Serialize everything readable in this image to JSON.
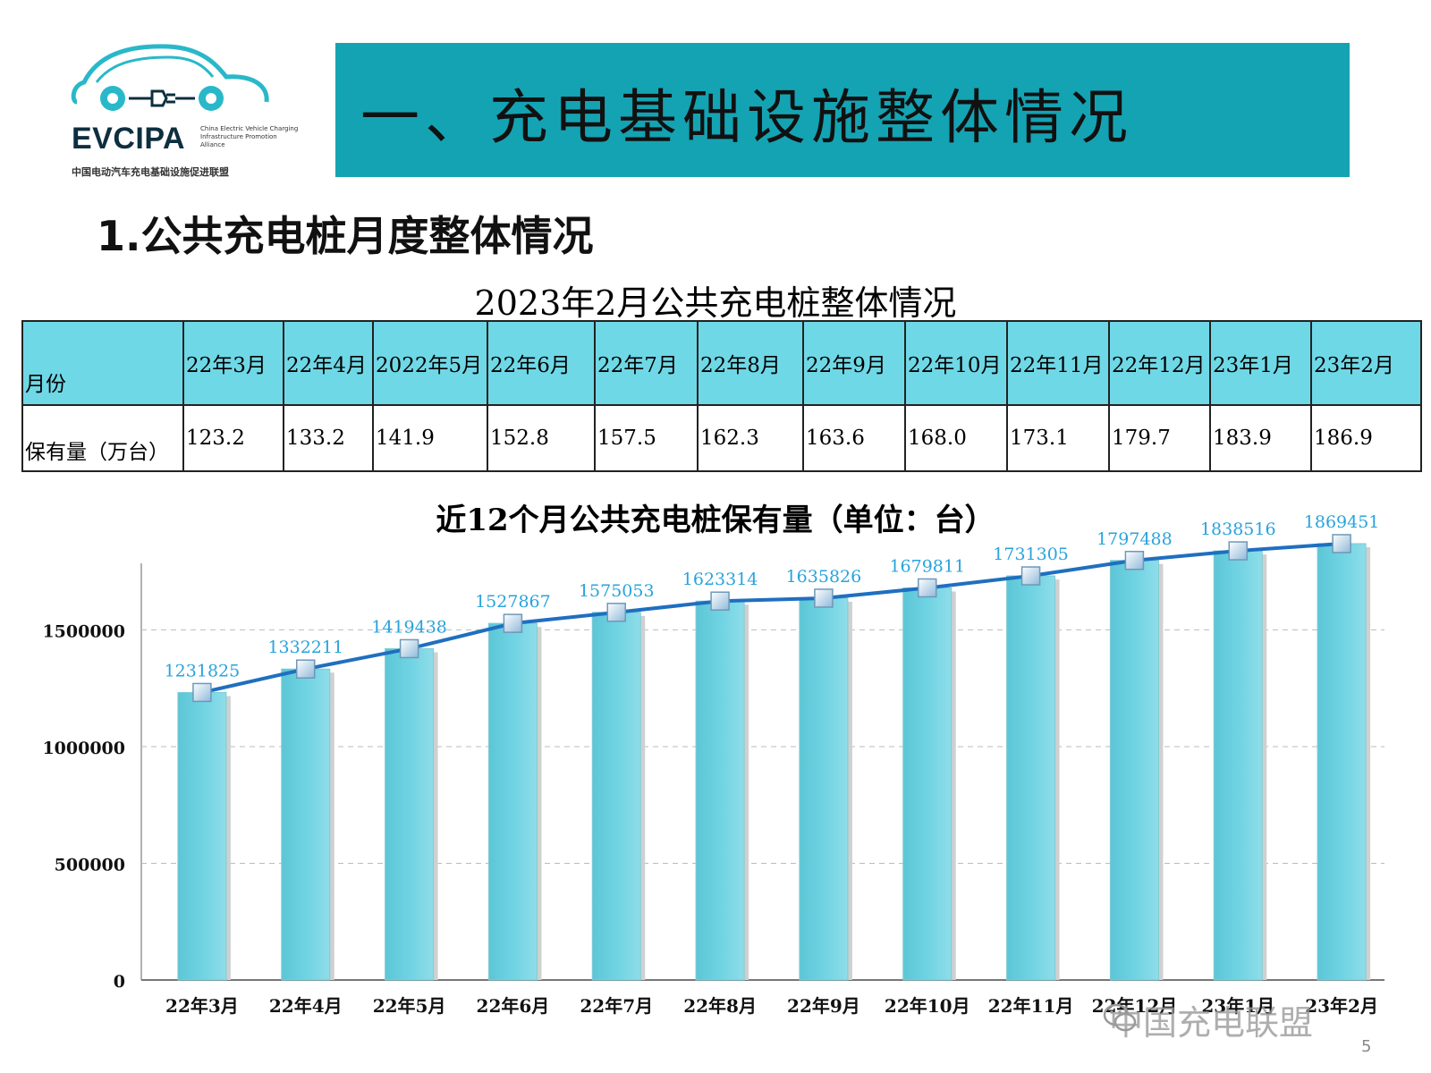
{
  "logo": {
    "brand": "EVCIPA",
    "tagline": "China Electric Vehicle Charging Infrastructure Promotion Alliance",
    "cn_name": "中国电动汽车充电基础设施促进联盟"
  },
  "banner": {
    "title": "一、充电基础设施整体情况"
  },
  "section_title": "1.公共充电桩月度整体情况",
  "table": {
    "title": "2023年2月公共充电桩整体情况",
    "row1_label": "月份",
    "row2_label": "保有量（万台）",
    "months": [
      "22年3月",
      "22年4月",
      "2022年5月",
      "22年6月",
      "22年7月",
      "22年8月",
      "22年9月",
      "22年10月",
      "22年11月",
      "22年12月",
      "23年1月",
      "23年2月"
    ],
    "values": [
      "123.2",
      "133.2",
      "141.9",
      "152.8",
      "157.5",
      "162.3",
      "163.6",
      "168.0",
      "173.1",
      "179.7",
      "183.9",
      "186.9"
    ]
  },
  "chart_data": {
    "type": "bar",
    "title": "近12个月公共充电桩保有量（单位：台）",
    "categories": [
      "22年3月",
      "22年4月",
      "22年5月",
      "22年6月",
      "22年7月",
      "22年8月",
      "22年9月",
      "22年10月",
      "22年11月",
      "22年12月",
      "23年1月",
      "23年2月"
    ],
    "series": [
      {
        "type": "bar",
        "values": [
          1231825,
          1332211,
          1419438,
          1527867,
          1575053,
          1623314,
          1635826,
          1679811,
          1731305,
          1797488,
          1838516,
          1869451
        ]
      },
      {
        "type": "line",
        "values": [
          1231825,
          1332211,
          1419438,
          1527867,
          1575053,
          1623314,
          1635826,
          1679811,
          1731305,
          1797488,
          1838516,
          1869451
        ]
      }
    ],
    "yticks": [
      "0",
      "500000",
      "1000000",
      "1500000"
    ],
    "ylim": [
      0,
      1900000
    ],
    "grid": true,
    "bar_color": "#6fd3e2",
    "line_color": "#1f6fc0",
    "label_color": "#29a3dc"
  },
  "watermark": "中国充电联盟",
  "page_number": "5"
}
